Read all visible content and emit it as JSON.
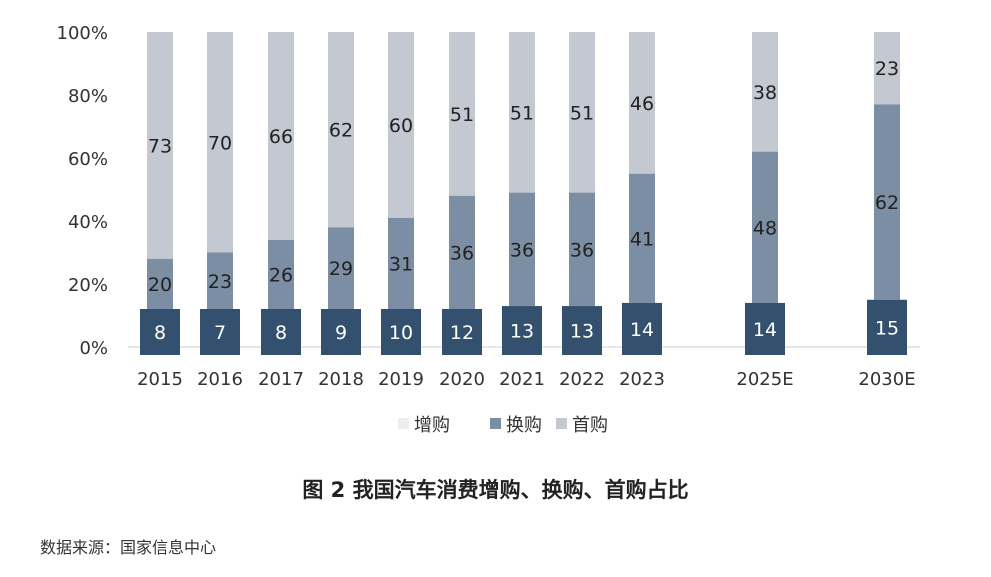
{
  "chart_data": {
    "type": "bar",
    "stacked": true,
    "categories": [
      "2015",
      "2016",
      "2017",
      "2018",
      "2019",
      "2020",
      "2021",
      "2022",
      "2023",
      "2025E",
      "2030E"
    ],
    "series": [
      {
        "name": "增购",
        "color": "#33506f",
        "values": [
          8,
          7,
          8,
          9,
          10,
          12,
          13,
          13,
          14,
          14,
          15
        ]
      },
      {
        "name": "换购",
        "color": "#7c8ea3",
        "values": [
          20,
          23,
          26,
          29,
          31,
          36,
          36,
          36,
          41,
          48,
          62
        ]
      },
      {
        "name": "首购",
        "color": "#c3c8d1",
        "values": [
          73,
          70,
          66,
          62,
          60,
          51,
          51,
          51,
          46,
          38,
          23
        ]
      }
    ],
    "legend_colors": [
      "#ededed",
      "#7c8ea3",
      "#c3c8d1"
    ],
    "ylim": [
      0,
      100
    ],
    "yticks": [
      "0%",
      "20%",
      "40%",
      "60%",
      "80%",
      "100%"
    ],
    "legend": "bottom",
    "grid": false
  },
  "caption": "图 2  我国汽车消费增购、换购、首购占比",
  "source": "数据来源：国家信息中心"
}
